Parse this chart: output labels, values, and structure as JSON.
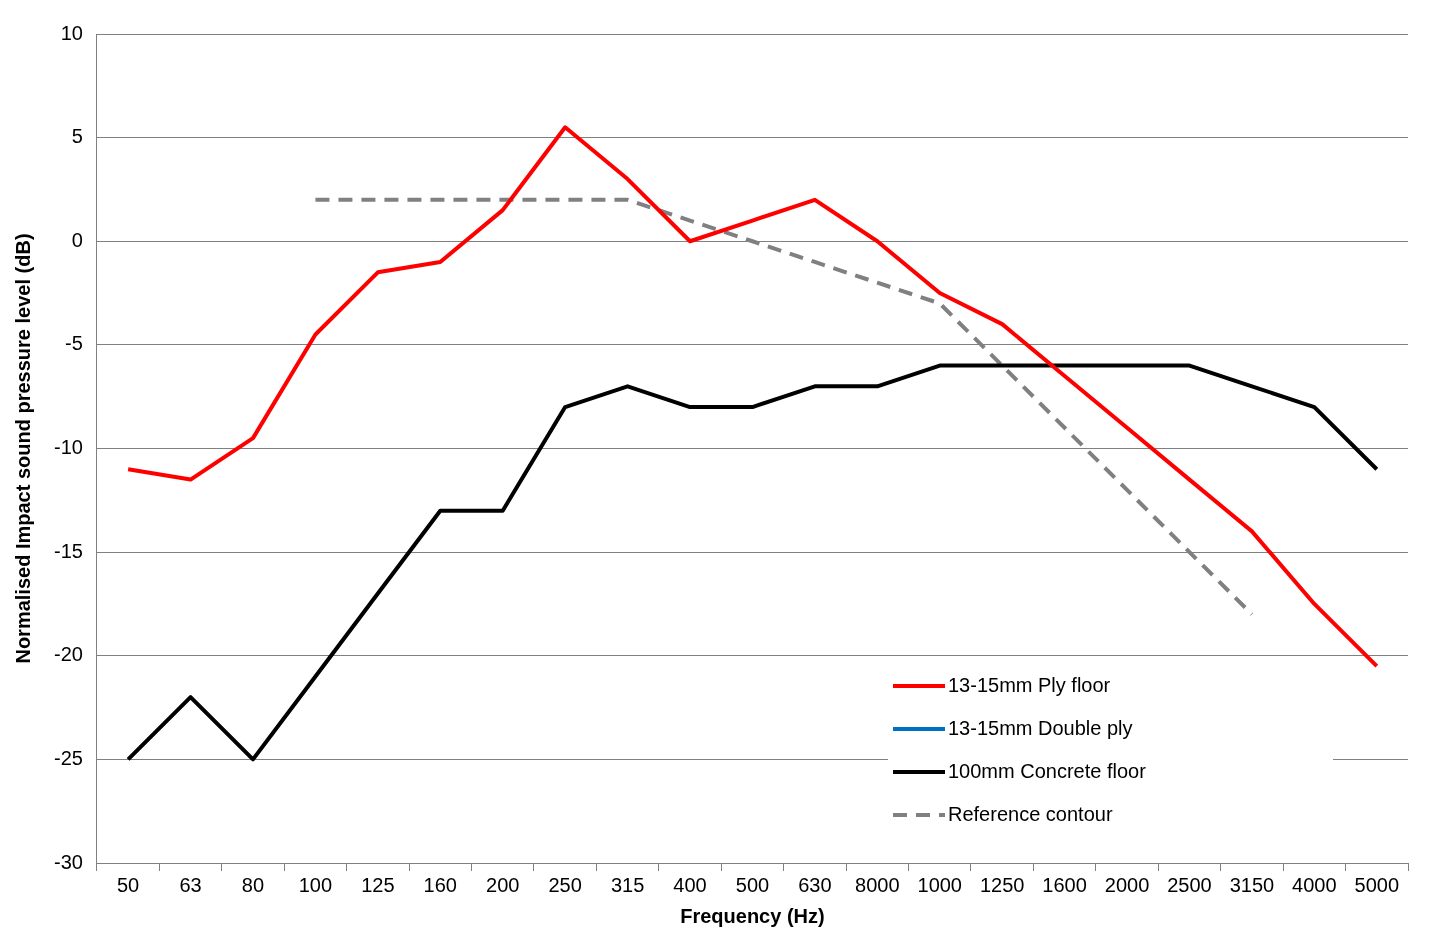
{
  "chart_data": {
    "type": "line",
    "xlabel": "Frequency (Hz)",
    "ylabel": "Normalised Impact sound pressure level (dB)",
    "categories": [
      "50",
      "63",
      "80",
      "100",
      "125",
      "160",
      "200",
      "250",
      "315",
      "400",
      "500",
      "630",
      "8000",
      "1000",
      "1250",
      "1600",
      "2000",
      "2500",
      "3150",
      "4000",
      "5000"
    ],
    "series": [
      {
        "name": "13-15mm Ply floor",
        "color": "#ff0000",
        "values": [
          -11,
          -11.5,
          -9.5,
          -4.5,
          -1.5,
          -1,
          1.5,
          5.5,
          3,
          0,
          1,
          2,
          0,
          -2.5,
          -4,
          -6.5,
          -9,
          -11.5,
          -14,
          -17.5,
          -20.5
        ]
      },
      {
        "name": "13-15mm Double ply",
        "color": "#0070c0",
        "values": [
          null,
          null,
          null,
          null,
          null,
          null,
          null,
          null,
          null,
          null,
          null,
          null,
          null,
          null,
          null,
          null,
          null,
          null,
          null,
          null,
          null
        ]
      },
      {
        "name": "100mm Concrete floor",
        "color": "#000000",
        "values": [
          -25,
          -22,
          -25,
          -21,
          -17,
          -13,
          -13,
          -8,
          -7,
          -8,
          -8,
          -7,
          -7,
          -6,
          -6,
          -6,
          -6,
          -6,
          -7,
          -8,
          -11
        ]
      },
      {
        "name": "Reference contour",
        "color": "#808080",
        "line_style": "dashed",
        "values": [
          null,
          null,
          null,
          2,
          2,
          2,
          2,
          2,
          2,
          1,
          0,
          -1,
          -2,
          -3,
          -6,
          -9,
          -12,
          -15,
          -18,
          null,
          null
        ]
      }
    ],
    "ylim": [
      -30,
      10
    ],
    "yticks": [
      -30,
      -25,
      -20,
      -15,
      -10,
      -5,
      0,
      5,
      10
    ],
    "grid": "y",
    "legend": "bottom right",
    "marker": "none",
    "line_style": "solid"
  }
}
